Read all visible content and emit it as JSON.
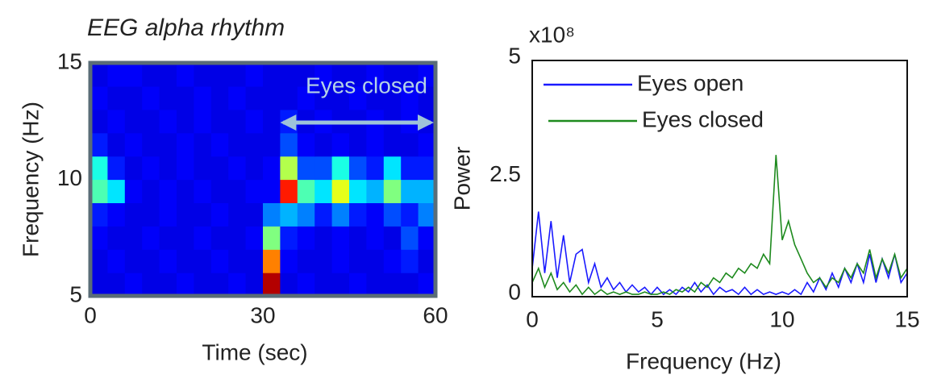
{
  "chart_data": [
    {
      "type": "heatmap",
      "title": "EEG alpha rhythm",
      "x_label": "Time (sec)",
      "y_label": "Frequency (Hz)",
      "xlim": [
        0,
        60
      ],
      "xticks": [
        0,
        30,
        60
      ],
      "ylim": [
        5,
        15
      ],
      "yticks": [
        5,
        10,
        15
      ],
      "colormap": "jet",
      "annotation": {
        "text": "Eyes closed",
        "xrange": [
          33,
          60
        ]
      },
      "z": [
        [
          0.1,
          0.1,
          0.12,
          0.1,
          0.1,
          0.12,
          0.1,
          0.1,
          0.12,
          0.1,
          0.95,
          0.1,
          0.12,
          0.1,
          0.1,
          0.12,
          0.1,
          0.1,
          0.1,
          0.12
        ],
        [
          0.1,
          0.12,
          0.1,
          0.1,
          0.12,
          0.1,
          0.1,
          0.12,
          0.1,
          0.1,
          0.75,
          0.12,
          0.1,
          0.1,
          0.12,
          0.1,
          0.1,
          0.12,
          0.15,
          0.1
        ],
        [
          0.12,
          0.1,
          0.1,
          0.12,
          0.1,
          0.1,
          0.12,
          0.1,
          0.1,
          0.12,
          0.5,
          0.15,
          0.12,
          0.1,
          0.12,
          0.1,
          0.12,
          0.1,
          0.2,
          0.12
        ],
        [
          0.15,
          0.12,
          0.1,
          0.1,
          0.12,
          0.1,
          0.1,
          0.12,
          0.1,
          0.1,
          0.25,
          0.3,
          0.25,
          0.15,
          0.25,
          0.15,
          0.12,
          0.2,
          0.15,
          0.25
        ],
        [
          0.45,
          0.35,
          0.12,
          0.1,
          0.12,
          0.1,
          0.12,
          0.1,
          0.1,
          0.12,
          0.12,
          0.85,
          0.45,
          0.35,
          0.6,
          0.35,
          0.3,
          0.5,
          0.3,
          0.3
        ],
        [
          0.4,
          0.15,
          0.1,
          0.12,
          0.1,
          0.12,
          0.1,
          0.1,
          0.12,
          0.1,
          0.12,
          0.55,
          0.2,
          0.2,
          0.4,
          0.2,
          0.15,
          0.35,
          0.15,
          0.15
        ],
        [
          0.15,
          0.1,
          0.12,
          0.1,
          0.1,
          0.12,
          0.1,
          0.12,
          0.1,
          0.1,
          0.1,
          0.2,
          0.12,
          0.1,
          0.12,
          0.1,
          0.12,
          0.1,
          0.1,
          0.12
        ],
        [
          0.1,
          0.12,
          0.1,
          0.1,
          0.12,
          0.1,
          0.12,
          0.1,
          0.1,
          0.12,
          0.1,
          0.15,
          0.1,
          0.12,
          0.1,
          0.1,
          0.12,
          0.1,
          0.12,
          0.1
        ],
        [
          0.12,
          0.1,
          0.1,
          0.12,
          0.1,
          0.1,
          0.12,
          0.1,
          0.12,
          0.1,
          0.1,
          0.1,
          0.12,
          0.1,
          0.1,
          0.12,
          0.1,
          0.1,
          0.12,
          0.1
        ],
        [
          0.1,
          0.12,
          0.12,
          0.1,
          0.1,
          0.12,
          0.1,
          0.1,
          0.1,
          0.12,
          0.1,
          0.1,
          0.1,
          0.12,
          0.1,
          0.1,
          0.12,
          0.1,
          0.1,
          0.12
        ]
      ]
    },
    {
      "type": "line",
      "x_label": "Frequency (Hz)",
      "y_label": "Power",
      "y_scale_label": "x10⁸",
      "xlim": [
        0,
        15
      ],
      "xticks": [
        0,
        5,
        10,
        15
      ],
      "ylim": [
        0,
        5
      ],
      "yticks": [
        0,
        2.5,
        5
      ],
      "legend": "upper left",
      "x": [
        0,
        0.25,
        0.5,
        0.75,
        1,
        1.25,
        1.5,
        1.75,
        2,
        2.25,
        2.5,
        2.75,
        3,
        3.25,
        3.5,
        3.75,
        4,
        4.25,
        4.5,
        4.75,
        5,
        5.25,
        5.5,
        5.75,
        6,
        6.25,
        6.5,
        6.75,
        7,
        7.25,
        7.5,
        7.75,
        8,
        8.25,
        8.5,
        8.75,
        9,
        9.25,
        9.5,
        9.75,
        10,
        10.25,
        10.5,
        10.75,
        11,
        11.25,
        11.5,
        11.75,
        12,
        12.25,
        12.5,
        12.75,
        13,
        13.25,
        13.5,
        13.75,
        14,
        14.25,
        14.5,
        14.75,
        15
      ],
      "series": [
        {
          "name": "Eyes open",
          "color": "#1a1aff",
          "values": [
            0.6,
            1.8,
            0.5,
            1.6,
            0.4,
            1.3,
            0.3,
            0.9,
            1.0,
            0.3,
            0.7,
            0.2,
            0.4,
            0.15,
            0.3,
            0.1,
            0.25,
            0.1,
            0.2,
            0.05,
            0.2,
            0.05,
            0.15,
            0.05,
            0.2,
            0.1,
            0.3,
            0.1,
            0.25,
            0.05,
            0.2,
            0.1,
            0.15,
            0.05,
            0.2,
            0.05,
            0.15,
            0.05,
            0.1,
            0.05,
            0.1,
            0.05,
            0.15,
            0.05,
            0.3,
            0.1,
            0.4,
            0.15,
            0.5,
            0.2,
            0.6,
            0.3,
            0.7,
            0.3,
            0.9,
            0.3,
            0.8,
            0.4,
            0.9,
            0.3,
            0.5
          ]
        },
        {
          "name": "Eyes closed",
          "color": "#1e8a1e",
          "values": [
            0.3,
            0.6,
            0.2,
            0.5,
            0.15,
            0.3,
            0.1,
            0.25,
            0.05,
            0.2,
            0.05,
            0.15,
            0.05,
            0.1,
            0.05,
            0.1,
            0.05,
            0.05,
            0.1,
            0.05,
            0.05,
            0.1,
            0.05,
            0.15,
            0.1,
            0.2,
            0.1,
            0.3,
            0.2,
            0.4,
            0.3,
            0.5,
            0.4,
            0.6,
            0.5,
            0.7,
            0.6,
            0.9,
            0.7,
            3.0,
            1.2,
            1.6,
            1.1,
            0.8,
            0.5,
            0.3,
            0.4,
            0.2,
            0.4,
            0.3,
            0.6,
            0.4,
            0.7,
            0.5,
            1.0,
            0.4,
            0.8,
            0.5,
            0.9,
            0.4,
            0.6
          ]
        }
      ]
    }
  ]
}
